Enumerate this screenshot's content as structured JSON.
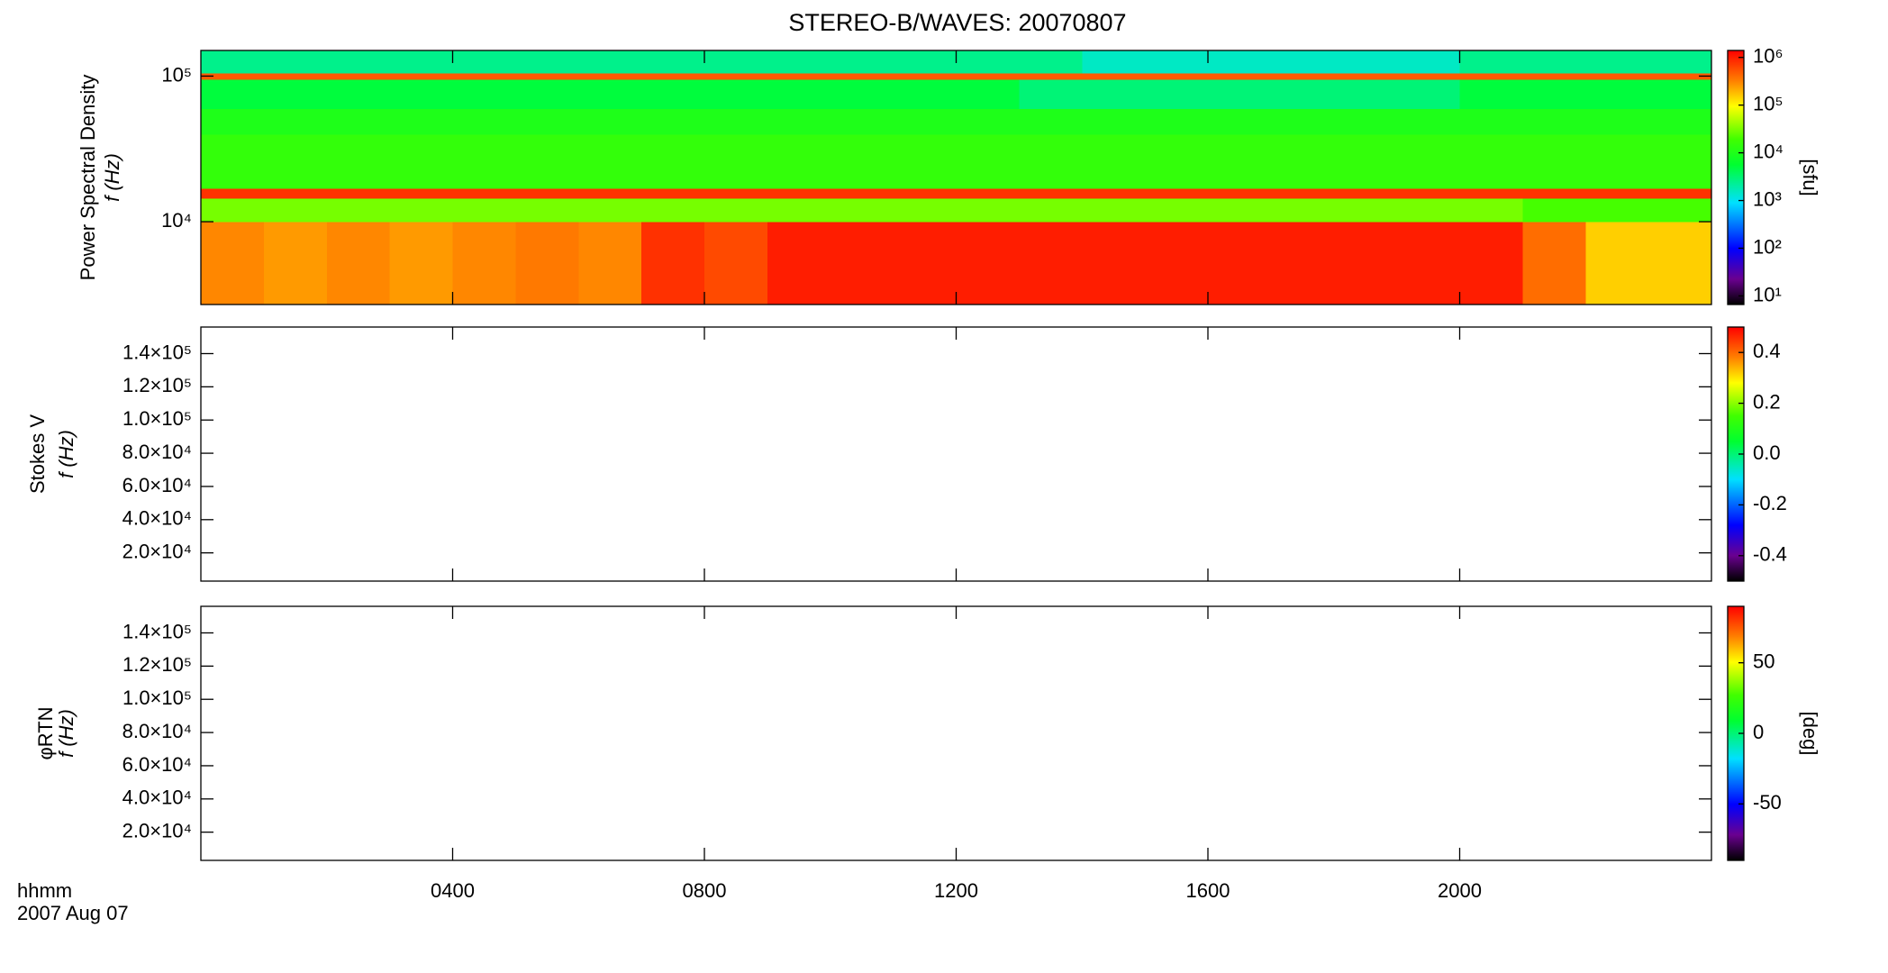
{
  "chart_data": [
    {
      "type": "heatmap",
      "title": "STEREO-B/WAVES: 20070807",
      "ylabel": "Power Spectral Density",
      "ylabel2": "f (Hz)",
      "yscale": "log",
      "ylim": [
        2700,
        150000
      ],
      "yticks": [
        {
          "value": 10000,
          "label": "10⁴"
        },
        {
          "value": 100000,
          "label": "10⁵"
        }
      ],
      "xlim": [
        0,
        24
      ],
      "xbins": [
        0,
        1,
        2,
        3,
        4,
        5,
        6,
        7,
        8,
        9,
        10,
        11,
        12,
        13,
        14,
        15,
        16,
        17,
        18,
        19,
        20,
        21,
        22,
        23,
        24
      ],
      "ybins": [
        2700,
        10000,
        14500,
        17000,
        40000,
        60000,
        95000,
        105000,
        150000
      ],
      "values": [
        [
          300000,
          250000,
          300000,
          250000,
          300000,
          350000,
          300000,
          800000,
          600000,
          1000000,
          1000000,
          1000000,
          1000000,
          1000000,
          1000000,
          1000000,
          1000000,
          1000000,
          1000000,
          1000000,
          1000000,
          400000,
          150000,
          150000
        ],
        [
          30000,
          30000,
          30000,
          30000,
          30000,
          30000,
          30000,
          30000,
          30000,
          30000,
          30000,
          30000,
          30000,
          30000,
          30000,
          30000,
          30000,
          30000,
          30000,
          30000,
          30000,
          20000,
          20000,
          20000
        ],
        [
          800000,
          800000,
          800000,
          800000,
          800000,
          800000,
          800000,
          800000,
          800000,
          800000,
          800000,
          800000,
          800000,
          800000,
          800000,
          800000,
          800000,
          800000,
          800000,
          800000,
          800000,
          800000,
          800000,
          800000
        ],
        [
          15000,
          15000,
          15000,
          15000,
          15000,
          15000,
          15000,
          15000,
          15000,
          15000,
          15000,
          15000,
          15000,
          15000,
          15000,
          15000,
          15000,
          15000,
          15000,
          15000,
          15000,
          15000,
          15000,
          15000
        ],
        [
          10000,
          10000,
          10000,
          10000,
          10000,
          10000,
          10000,
          10000,
          10000,
          10000,
          10000,
          10000,
          10000,
          10000,
          10000,
          10000,
          10000,
          10000,
          10000,
          10000,
          10000,
          10000,
          10000,
          10000
        ],
        [
          5000,
          5000,
          5000,
          5000,
          5000,
          5000,
          5000,
          5000,
          5000,
          5000,
          5000,
          5000,
          5000,
          3000,
          3000,
          3000,
          3000,
          3000,
          3000,
          3000,
          5000,
          5000,
          5000,
          5000
        ],
        [
          500000,
          500000,
          500000,
          500000,
          500000,
          500000,
          500000,
          500000,
          500000,
          500000,
          500000,
          500000,
          500000,
          500000,
          500000,
          500000,
          500000,
          500000,
          500000,
          500000,
          500000,
          500000,
          500000,
          500000
        ],
        [
          2500,
          2500,
          2500,
          2500,
          2500,
          2500,
          2500,
          2500,
          2500,
          2500,
          2500,
          2500,
          2500,
          2500,
          1500,
          1500,
          1500,
          1500,
          1500,
          1500,
          2500,
          2500,
          2500,
          2500
        ]
      ],
      "colorbar": {
        "scale": "log",
        "lim": [
          6.6,
          1400000
        ],
        "label": "[sfu]",
        "ticks": [
          {
            "value": 10,
            "label": "10¹"
          },
          {
            "value": 100,
            "label": "10²"
          },
          {
            "value": 1000,
            "label": "10³"
          },
          {
            "value": 10000,
            "label": "10⁴"
          },
          {
            "value": 100000,
            "label": "10⁵"
          },
          {
            "value": 1000000,
            "label": "10⁶"
          }
        ]
      }
    },
    {
      "type": "heatmap",
      "ylabel": "Stokes V",
      "ylabel2": "f (Hz)",
      "yscale": "linear",
      "ylim": [
        3000,
        156000
      ],
      "yticks": [
        {
          "value": 20000,
          "label": "2.0×10⁴"
        },
        {
          "value": 40000,
          "label": "4.0×10⁴"
        },
        {
          "value": 60000,
          "label": "6.0×10⁴"
        },
        {
          "value": 80000,
          "label": "8.0×10⁴"
        },
        {
          "value": 100000,
          "label": "1.0×10⁵"
        },
        {
          "value": 120000,
          "label": "1.2×10⁵"
        },
        {
          "value": 140000,
          "label": "1.4×10⁵"
        }
      ],
      "xlim": [
        0,
        24
      ],
      "colorbar": {
        "scale": "linear",
        "lim": [
          -0.5,
          0.5
        ],
        "ticks": [
          -0.4,
          -0.2,
          {
            "value": 0,
            "label": "0.0"
          },
          0.2,
          0.4
        ]
      }
    },
    {
      "type": "heatmap",
      "ylabel": "φRTN",
      "ylabel2": "f (Hz)",
      "yscale": "linear",
      "ylim": [
        3000,
        156000
      ],
      "yticks": [
        {
          "value": 20000,
          "label": "2.0×10⁴"
        },
        {
          "value": 40000,
          "label": "4.0×10⁴"
        },
        {
          "value": 60000,
          "label": "6.0×10⁴"
        },
        {
          "value": 80000,
          "label": "8.0×10⁴"
        },
        {
          "value": 100000,
          "label": "1.0×10⁵"
        },
        {
          "value": 120000,
          "label": "1.2×10⁵"
        },
        {
          "value": 140000,
          "label": "1.4×10⁵"
        }
      ],
      "xlim": [
        0,
        24
      ],
      "xticks": [
        {
          "value": 4,
          "label": "0400"
        },
        {
          "value": 8,
          "label": "0800"
        },
        {
          "value": 12,
          "label": "1200"
        },
        {
          "value": 16,
          "label": "1600"
        },
        {
          "value": 20,
          "label": "2000"
        }
      ],
      "xlabel": "hhmm",
      "date": "2007 Aug 07",
      "colorbar": {
        "scale": "linear",
        "lim": [
          -90,
          90
        ],
        "label": "[deg]",
        "ticks": [
          -50,
          0,
          50
        ]
      }
    }
  ]
}
